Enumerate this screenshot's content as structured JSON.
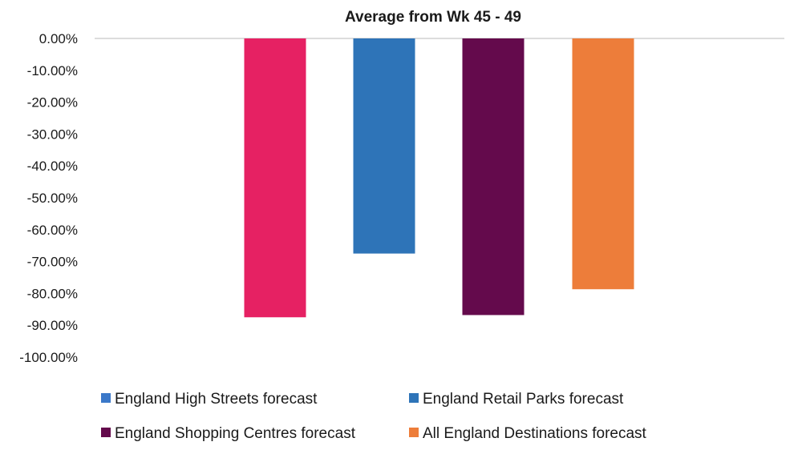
{
  "chart_data": {
    "type": "bar",
    "title": "Average from Wk 45 - 49",
    "xlabel": "",
    "ylabel": "",
    "ylim": [
      -100,
      0
    ],
    "y_ticks": [
      "0.00%",
      "-10.00%",
      "-20.00%",
      "-30.00%",
      "-40.00%",
      "-50.00%",
      "-60.00%",
      "-70.00%",
      "-80.00%",
      "-90.00%",
      "-100.00%"
    ],
    "y_tick_values": [
      0,
      -10,
      -20,
      -30,
      -40,
      -50,
      -60,
      -70,
      -80,
      -90,
      -100
    ],
    "grid": false,
    "legend_position": "bottom",
    "series": [
      {
        "name": "England High Streets forecast",
        "value": -87.5,
        "color": "#E62163",
        "legend_color": "#3B78C9"
      },
      {
        "name": "England Retail Parks forecast",
        "value": -67.5,
        "color": "#2E74B8",
        "legend_color": "#2E74B8"
      },
      {
        "name": "England Shopping Centres forecast",
        "value": -86.8,
        "color": "#640A4C",
        "legend_color": "#640A4C"
      },
      {
        "name": "All England Destinations forecast",
        "value": -78.7,
        "color": "#ED7D3A",
        "legend_color": "#ED7D3A"
      }
    ]
  }
}
